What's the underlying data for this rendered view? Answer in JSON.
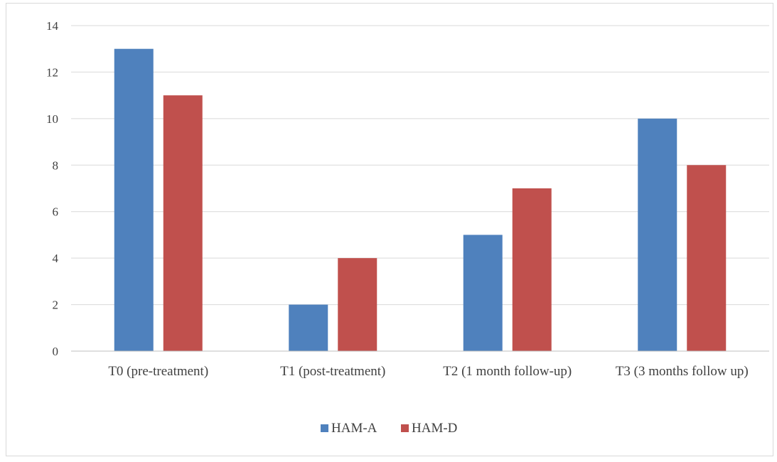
{
  "chart_data": {
    "type": "bar",
    "categories": [
      "T0 (pre-treatment)",
      "T1 (post-treatment)",
      "T2 (1 month follow-up)",
      "T3 (3 months follow up)"
    ],
    "series": [
      {
        "name": "HAM-A",
        "values": [
          13,
          2,
          5,
          10
        ],
        "color": "#4f81bd"
      },
      {
        "name": "HAM-D",
        "values": [
          11,
          4,
          7,
          8
        ],
        "color": "#c0504d"
      }
    ],
    "ylim": [
      0,
      14
    ],
    "yticks": [
      0,
      2,
      4,
      6,
      8,
      10,
      12,
      14
    ],
    "grid": true,
    "legend": "bottom-center"
  }
}
